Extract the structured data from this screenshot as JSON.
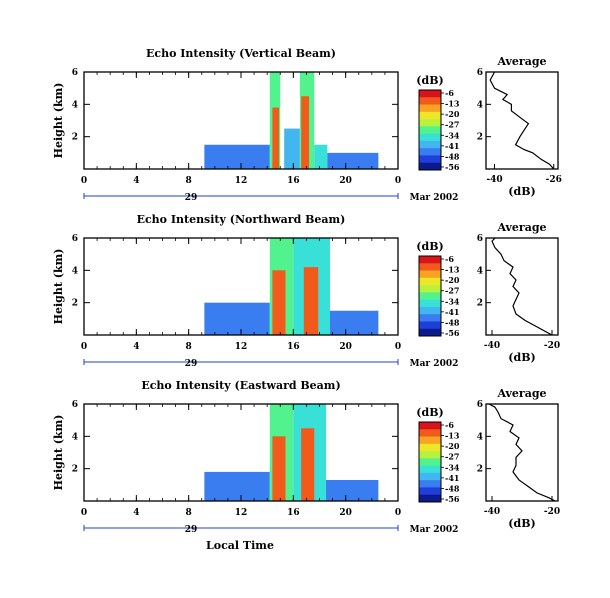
{
  "colors": {
    "colormap": [
      "#0b1a8c",
      "#1f3fd8",
      "#3a7df0",
      "#41b6f0",
      "#38e0d8",
      "#52f28e",
      "#b8f23c",
      "#f0e628",
      "#f8a422",
      "#f25a1c",
      "#d8141a"
    ]
  },
  "chart_data": [
    {
      "type": "heatmap",
      "title": "Echo Intensity (Vertical Beam)",
      "ylabel": "Height (km)",
      "xticks": [
        "0",
        "4",
        "8",
        "12",
        "16",
        "20",
        "0"
      ],
      "date_day": "29",
      "date_label": "Mar 2002",
      "yticks": [
        "2",
        "4",
        "6"
      ],
      "xlim": [
        0,
        24
      ],
      "ylim": [
        0,
        6
      ],
      "colorbar": {
        "label": "(dB)",
        "ticks": [
          "-6",
          "-13",
          "-20",
          "-27",
          "-34",
          "-41",
          "-48",
          "-56"
        ]
      },
      "cells": [
        {
          "t0": 9.2,
          "t1": 14.2,
          "h0": 0.0,
          "h1": 1.5,
          "level": 2
        },
        {
          "t0": 14.2,
          "t1": 15.0,
          "h0": 0.0,
          "h1": 6.0,
          "level": 5
        },
        {
          "t0": 14.4,
          "t1": 14.9,
          "h0": 0.0,
          "h1": 3.8,
          "level": 9
        },
        {
          "t0": 15.3,
          "t1": 16.5,
          "h0": 0.0,
          "h1": 2.5,
          "level": 3
        },
        {
          "t0": 16.5,
          "t1": 17.6,
          "h0": 0.0,
          "h1": 6.0,
          "level": 5
        },
        {
          "t0": 16.6,
          "t1": 17.2,
          "h0": 0.0,
          "h1": 4.5,
          "level": 9
        },
        {
          "t0": 17.6,
          "t1": 18.6,
          "h0": 0.0,
          "h1": 1.5,
          "level": 4
        },
        {
          "t0": 18.6,
          "t1": 22.5,
          "h0": 0.0,
          "h1": 1.0,
          "level": 2
        }
      ],
      "avg": {
        "title": "Average",
        "xlabel": "(dB)",
        "xticks": [
          "-40",
          "-26"
        ],
        "yticks": [
          "2",
          "4",
          "6"
        ],
        "xlim": [
          -42,
          -25
        ],
        "ylim": [
          0,
          6
        ],
        "profile": [
          [
            -26,
            0.0
          ],
          [
            -27,
            0.3
          ],
          [
            -29,
            0.6
          ],
          [
            -31,
            1.0
          ],
          [
            -33,
            1.2
          ],
          [
            -35,
            1.5
          ],
          [
            -34,
            2.0
          ],
          [
            -33,
            2.4
          ],
          [
            -32,
            2.8
          ],
          [
            -34,
            3.2
          ],
          [
            -36,
            3.6
          ],
          [
            -36,
            4.0
          ],
          [
            -38,
            4.3
          ],
          [
            -37,
            4.6
          ],
          [
            -40,
            5.0
          ],
          [
            -41,
            5.5
          ],
          [
            -40,
            6.0
          ]
        ]
      }
    },
    {
      "type": "heatmap",
      "title": "Echo Intensity (Northward Beam)",
      "ylabel": "Height (km)",
      "xticks": [
        "0",
        "4",
        "8",
        "12",
        "16",
        "20",
        "0"
      ],
      "date_day": "29",
      "date_label": "Mar 2002",
      "yticks": [
        "2",
        "4",
        "6"
      ],
      "xlim": [
        0,
        24
      ],
      "ylim": [
        0,
        6
      ],
      "colorbar": {
        "label": "(dB)",
        "ticks": [
          "-6",
          "-13",
          "-20",
          "-27",
          "-34",
          "-41",
          "-48",
          "-56"
        ]
      },
      "cells": [
        {
          "t0": 9.2,
          "t1": 14.2,
          "h0": 0.0,
          "h1": 2.0,
          "level": 2
        },
        {
          "t0": 14.2,
          "t1": 16.0,
          "h0": 0.0,
          "h1": 6.0,
          "level": 5
        },
        {
          "t0": 14.4,
          "t1": 15.4,
          "h0": 0.0,
          "h1": 4.0,
          "level": 9
        },
        {
          "t0": 16.0,
          "t1": 18.8,
          "h0": 0.0,
          "h1": 6.0,
          "level": 4
        },
        {
          "t0": 16.8,
          "t1": 17.9,
          "h0": 0.0,
          "h1": 4.2,
          "level": 9
        },
        {
          "t0": 18.8,
          "t1": 22.5,
          "h0": 0.0,
          "h1": 1.5,
          "level": 2
        }
      ],
      "avg": {
        "title": "Average",
        "xlabel": "(dB)",
        "xticks": [
          "-40",
          "-20"
        ],
        "yticks": [
          "2",
          "4",
          "6"
        ],
        "xlim": [
          -42,
          -18
        ],
        "ylim": [
          0,
          6
        ],
        "profile": [
          [
            -20,
            0.0
          ],
          [
            -22,
            0.2
          ],
          [
            -25,
            0.5
          ],
          [
            -29,
            0.9
          ],
          [
            -32,
            1.3
          ],
          [
            -33,
            1.8
          ],
          [
            -32,
            2.2
          ],
          [
            -31,
            2.6
          ],
          [
            -33,
            3.0
          ],
          [
            -32,
            3.4
          ],
          [
            -34,
            3.8
          ],
          [
            -33,
            4.2
          ],
          [
            -36,
            4.6
          ],
          [
            -37,
            5.0
          ],
          [
            -39,
            5.4
          ],
          [
            -40,
            5.8
          ],
          [
            -39,
            6.0
          ]
        ]
      }
    },
    {
      "type": "heatmap",
      "title": "Echo Intensity (Eastward Beam)",
      "ylabel": "Height (km)",
      "xticks": [
        "0",
        "4",
        "8",
        "12",
        "16",
        "20",
        "0"
      ],
      "date_day": "29",
      "date_label": "Mar 2002",
      "yticks": [
        "2",
        "4",
        "6"
      ],
      "xlim": [
        0,
        24
      ],
      "ylim": [
        0,
        6
      ],
      "colorbar": {
        "label": "(dB)",
        "ticks": [
          "-6",
          "-13",
          "-20",
          "-27",
          "-34",
          "-41",
          "-48",
          "-56"
        ]
      },
      "cells": [
        {
          "t0": 9.2,
          "t1": 14.2,
          "h0": 0.0,
          "h1": 1.8,
          "level": 2
        },
        {
          "t0": 14.2,
          "t1": 16.0,
          "h0": 0.0,
          "h1": 6.0,
          "level": 5
        },
        {
          "t0": 14.4,
          "t1": 15.4,
          "h0": 0.0,
          "h1": 4.0,
          "level": 9
        },
        {
          "t0": 16.0,
          "t1": 18.5,
          "h0": 0.0,
          "h1": 6.0,
          "level": 4
        },
        {
          "t0": 16.6,
          "t1": 17.6,
          "h0": 0.0,
          "h1": 4.5,
          "level": 9
        },
        {
          "t0": 18.5,
          "t1": 22.5,
          "h0": 0.0,
          "h1": 1.3,
          "level": 2
        }
      ],
      "avg": {
        "title": "Average",
        "xlabel": "(dB)",
        "xticks": [
          "-40",
          "-20"
        ],
        "yticks": [
          "2",
          "4",
          "6"
        ],
        "xlim": [
          -42,
          -18
        ],
        "ylim": [
          0,
          6
        ],
        "profile": [
          [
            -19,
            0.0
          ],
          [
            -21,
            0.2
          ],
          [
            -25,
            0.5
          ],
          [
            -28,
            0.9
          ],
          [
            -31,
            1.3
          ],
          [
            -33,
            1.8
          ],
          [
            -32,
            2.2
          ],
          [
            -32,
            2.7
          ],
          [
            -30,
            3.1
          ],
          [
            -32,
            3.5
          ],
          [
            -31,
            3.9
          ],
          [
            -34,
            4.3
          ],
          [
            -33,
            4.7
          ],
          [
            -37,
            5.1
          ],
          [
            -38,
            5.5
          ],
          [
            -39,
            5.8
          ],
          [
            -41,
            6.0
          ]
        ]
      }
    }
  ],
  "footer": {
    "xlabel": "Local Time"
  }
}
